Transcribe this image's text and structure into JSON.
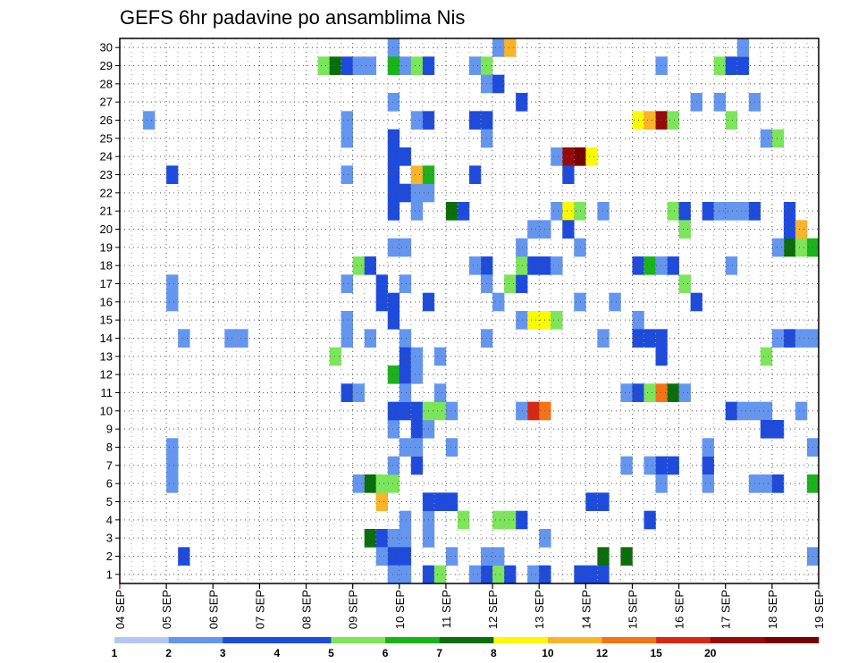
{
  "chart_data": {
    "type": "heatmap",
    "title": "GEFS 6hr padavine po ansamblima Nis",
    "y_members": [
      1,
      2,
      3,
      4,
      5,
      6,
      7,
      8,
      9,
      10,
      11,
      12,
      13,
      14,
      15,
      16,
      17,
      18,
      19,
      20,
      21,
      22,
      23,
      24,
      25,
      26,
      27,
      28,
      29,
      30
    ],
    "x_tick_labels": [
      "04 SEP",
      "05 SEP",
      "06 SEP",
      "07 SEP",
      "08 SEP",
      "09 SEP",
      "10 SEP",
      "11 SEP",
      "12 SEP",
      "13 SEP",
      "14 SEP",
      "15 SEP",
      "16 SEP",
      "17 SEP",
      "18 SEP",
      "19 SEP"
    ],
    "x_steps": 60,
    "grid": "dotted",
    "legend": {
      "position": "bottom",
      "labels": [
        "1",
        "2",
        "3",
        "4",
        "5",
        "6",
        "7",
        "8",
        "10",
        "12",
        "15",
        "20"
      ],
      "colors": [
        "#b4c8f5",
        "#6496f0",
        "#1e4bdc",
        "#1e4bdc",
        "#7ce65a",
        "#19b419",
        "#0a6e0a",
        "#fafa00",
        "#fab428",
        "#f57314",
        "#d72814",
        "#960a0a",
        "#780000"
      ]
    },
    "cells": [
      [
        2,
        26,
        2
      ],
      [
        4,
        23,
        3
      ],
      [
        4,
        8,
        2
      ],
      [
        4,
        6,
        2
      ],
      [
        4,
        7,
        2
      ],
      [
        4,
        17,
        2
      ],
      [
        4,
        16,
        2
      ],
      [
        5,
        14,
        2
      ],
      [
        5,
        2,
        3
      ],
      [
        9,
        14,
        2
      ],
      [
        10,
        14,
        2
      ],
      [
        17,
        29,
        5
      ],
      [
        18,
        29,
        7
      ],
      [
        18,
        13,
        5
      ],
      [
        19,
        29,
        3
      ],
      [
        20,
        29,
        2
      ],
      [
        21,
        29,
        2
      ],
      [
        19,
        26,
        2
      ],
      [
        19,
        25,
        2
      ],
      [
        19,
        23,
        2
      ],
      [
        19,
        17,
        2
      ],
      [
        19,
        15,
        2
      ],
      [
        19,
        14,
        2
      ],
      [
        19,
        11,
        3
      ],
      [
        20,
        11,
        2
      ],
      [
        20,
        18,
        5
      ],
      [
        21,
        18,
        3
      ],
      [
        21,
        14,
        2
      ],
      [
        20,
        6,
        2
      ],
      [
        21,
        6,
        7
      ],
      [
        21,
        3,
        7
      ],
      [
        22,
        3,
        3
      ],
      [
        22,
        17,
        3
      ],
      [
        22,
        16,
        3
      ],
      [
        22,
        5,
        9
      ],
      [
        22,
        6,
        5
      ],
      [
        22,
        2,
        2
      ],
      [
        23,
        19,
        2
      ],
      [
        24,
        19,
        2
      ],
      [
        23,
        3,
        2
      ],
      [
        24,
        3,
        2
      ],
      [
        23,
        12,
        6
      ],
      [
        23,
        6,
        5
      ],
      [
        23,
        2,
        3
      ],
      [
        24,
        2,
        3
      ],
      [
        23,
        7,
        2
      ],
      [
        23,
        9,
        2
      ],
      [
        23,
        10,
        3
      ],
      [
        24,
        10,
        3
      ],
      [
        23,
        30,
        2
      ],
      [
        23,
        27,
        2
      ],
      [
        23,
        25,
        3
      ],
      [
        23,
        24,
        3
      ],
      [
        24,
        24,
        3
      ],
      [
        23,
        23,
        3
      ],
      [
        23,
        22,
        3
      ],
      [
        24,
        22,
        3
      ],
      [
        23,
        21,
        3
      ],
      [
        23,
        29,
        6
      ],
      [
        24,
        29,
        2
      ],
      [
        23,
        16,
        3
      ],
      [
        23,
        15,
        3
      ],
      [
        23,
        1,
        2
      ],
      [
        24,
        1,
        2
      ],
      [
        24,
        17,
        2
      ],
      [
        24,
        14,
        2
      ],
      [
        24,
        13,
        3
      ],
      [
        24,
        12,
        3
      ],
      [
        24,
        11,
        2
      ],
      [
        24,
        8,
        2
      ],
      [
        24,
        4,
        2
      ],
      [
        25,
        29,
        5
      ],
      [
        26,
        29,
        3
      ],
      [
        25,
        13,
        2
      ],
      [
        25,
        12,
        2
      ],
      [
        25,
        7,
        3
      ],
      [
        25,
        10,
        3
      ],
      [
        25,
        9,
        3
      ],
      [
        25,
        21,
        2
      ],
      [
        26,
        22,
        2
      ],
      [
        25,
        22,
        2
      ],
      [
        25,
        23,
        9
      ],
      [
        26,
        23,
        6
      ],
      [
        26,
        4,
        2
      ],
      [
        26,
        5,
        3
      ],
      [
        27,
        5,
        3
      ],
      [
        28,
        5,
        3
      ],
      [
        26,
        9,
        2
      ],
      [
        25,
        8,
        2
      ],
      [
        26,
        3,
        2
      ],
      [
        25,
        26,
        2
      ],
      [
        26,
        26,
        3
      ],
      [
        26,
        16,
        3
      ],
      [
        26,
        10,
        5
      ],
      [
        27,
        10,
        5
      ],
      [
        28,
        10,
        2
      ],
      [
        26,
        1,
        3
      ],
      [
        27,
        1,
        5
      ],
      [
        27,
        11,
        2
      ],
      [
        27,
        13,
        2
      ],
      [
        28,
        2,
        2
      ],
      [
        28,
        8,
        2
      ],
      [
        29,
        4,
        5
      ],
      [
        28,
        21,
        7
      ],
      [
        29,
        21,
        3
      ],
      [
        30,
        29,
        2
      ],
      [
        31,
        29,
        5
      ],
      [
        30,
        26,
        3
      ],
      [
        31,
        26,
        3
      ],
      [
        30,
        18,
        2
      ],
      [
        31,
        18,
        3
      ],
      [
        30,
        23,
        3
      ],
      [
        30,
        1,
        2
      ],
      [
        31,
        1,
        3
      ],
      [
        32,
        1,
        5
      ],
      [
        33,
        1,
        3
      ],
      [
        31,
        2,
        2
      ],
      [
        32,
        2,
        2
      ],
      [
        32,
        4,
        5
      ],
      [
        33,
        4,
        5
      ],
      [
        34,
        4,
        3
      ],
      [
        32,
        16,
        2
      ],
      [
        33,
        17,
        5
      ],
      [
        34,
        17,
        3
      ],
      [
        31,
        17,
        2
      ],
      [
        31,
        25,
        2
      ],
      [
        31,
        14,
        2
      ],
      [
        31,
        28,
        2
      ],
      [
        32,
        28,
        3
      ],
      [
        32,
        30,
        2
      ],
      [
        33,
        30,
        9
      ],
      [
        34,
        27,
        3
      ],
      [
        34,
        15,
        2
      ],
      [
        35,
        15,
        8
      ],
      [
        36,
        15,
        8
      ],
      [
        37,
        15,
        5
      ],
      [
        34,
        18,
        5
      ],
      [
        35,
        18,
        3
      ],
      [
        36,
        18,
        3
      ],
      [
        37,
        18,
        2
      ],
      [
        34,
        19,
        2
      ],
      [
        35,
        20,
        2
      ],
      [
        36,
        20,
        2
      ],
      [
        37,
        21,
        2
      ],
      [
        38,
        21,
        8
      ],
      [
        39,
        21,
        5
      ],
      [
        34,
        10,
        2
      ],
      [
        35,
        10,
        11
      ],
      [
        36,
        10,
        10
      ],
      [
        35,
        1,
        2
      ],
      [
        36,
        1,
        3
      ],
      [
        36,
        3,
        2
      ],
      [
        37,
        24,
        2
      ],
      [
        38,
        24,
        12
      ],
      [
        39,
        24,
        13
      ],
      [
        40,
        24,
        8
      ],
      [
        38,
        23,
        3
      ],
      [
        38,
        20,
        3
      ],
      [
        39,
        19,
        2
      ],
      [
        39,
        16,
        2
      ],
      [
        39,
        1,
        3
      ],
      [
        40,
        1,
        3
      ],
      [
        41,
        1,
        3
      ],
      [
        41,
        2,
        7
      ],
      [
        41,
        14,
        2
      ],
      [
        41,
        21,
        2
      ],
      [
        42,
        16,
        2
      ],
      [
        40,
        5,
        3
      ],
      [
        41,
        5,
        3
      ],
      [
        43,
        7,
        2
      ],
      [
        43,
        11,
        2
      ],
      [
        44,
        26,
        8
      ],
      [
        45,
        26,
        9
      ],
      [
        46,
        26,
        12
      ],
      [
        47,
        26,
        5
      ],
      [
        44,
        11,
        3
      ],
      [
        45,
        11,
        5
      ],
      [
        46,
        11,
        10
      ],
      [
        47,
        11,
        7
      ],
      [
        48,
        11,
        2
      ],
      [
        44,
        15,
        2
      ],
      [
        44,
        14,
        3
      ],
      [
        45,
        14,
        3
      ],
      [
        46,
        14,
        3
      ],
      [
        44,
        18,
        3
      ],
      [
        45,
        18,
        6
      ],
      [
        46,
        18,
        2
      ],
      [
        47,
        18,
        3
      ],
      [
        43,
        2,
        7
      ],
      [
        45,
        4,
        3
      ],
      [
        45,
        7,
        2
      ],
      [
        46,
        7,
        3
      ],
      [
        47,
        7,
        3
      ],
      [
        46,
        13,
        3
      ],
      [
        46,
        6,
        2
      ],
      [
        46,
        29,
        2
      ],
      [
        47,
        21,
        5
      ],
      [
        48,
        21,
        3
      ],
      [
        48,
        20,
        5
      ],
      [
        48,
        17,
        5
      ],
      [
        49,
        16,
        3
      ],
      [
        49,
        27,
        2
      ],
      [
        50,
        7,
        3
      ],
      [
        50,
        6,
        2
      ],
      [
        50,
        21,
        3
      ],
      [
        51,
        21,
        2
      ],
      [
        52,
        21,
        2
      ],
      [
        51,
        27,
        2
      ],
      [
        52,
        18,
        2
      ],
      [
        50,
        8,
        2
      ],
      [
        51,
        29,
        5
      ],
      [
        52,
        29,
        3
      ],
      [
        53,
        29,
        3
      ],
      [
        52,
        26,
        5
      ],
      [
        52,
        10,
        3
      ],
      [
        53,
        10,
        2
      ],
      [
        54,
        10,
        2
      ],
      [
        55,
        10,
        2
      ],
      [
        55,
        9,
        3
      ],
      [
        56,
        9,
        3
      ],
      [
        53,
        30,
        2
      ],
      [
        53,
        21,
        2
      ],
      [
        54,
        21,
        3
      ],
      [
        54,
        6,
        2
      ],
      [
        55,
        6,
        2
      ],
      [
        56,
        6,
        3
      ],
      [
        54,
        27,
        2
      ],
      [
        55,
        25,
        2
      ],
      [
        56,
        25,
        5
      ],
      [
        55,
        13,
        5
      ],
      [
        56,
        14,
        2
      ],
      [
        57,
        14,
        3
      ],
      [
        58,
        14,
        2
      ],
      [
        57,
        19,
        7
      ],
      [
        58,
        19,
        5
      ],
      [
        59,
        19,
        6
      ],
      [
        56,
        19,
        2
      ],
      [
        57,
        20,
        3
      ],
      [
        58,
        20,
        9
      ],
      [
        57,
        21,
        3
      ],
      [
        58,
        10,
        2
      ],
      [
        59,
        8,
        2
      ],
      [
        59,
        6,
        6
      ],
      [
        59,
        2,
        2
      ],
      [
        59,
        14,
        2
      ]
    ]
  }
}
